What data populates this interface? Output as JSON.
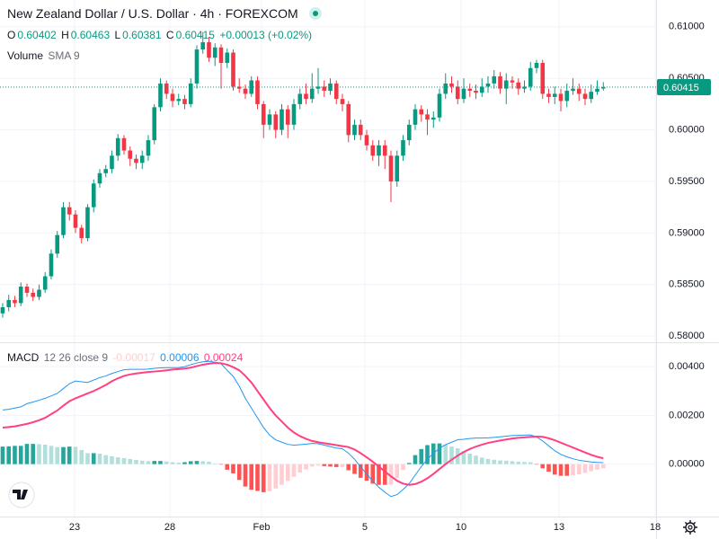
{
  "chart_data": [
    {
      "type": "candlestick",
      "title": "New Zealand Dollar / U.S. Dollar · 4h · FOREXCOM",
      "ohlc_labels": [
        "O",
        "H",
        "L",
        "C"
      ],
      "change_label": "+0.00013 (+0.02%)",
      "volume_label": "Volume",
      "volume_setting": "SMA 9",
      "up_color": "#089981",
      "down_color": "#f23645",
      "open": [
        0.5822,
        0.5828,
        0.5835,
        0.5832,
        0.5848,
        0.5842,
        0.5838,
        0.5845,
        0.5858,
        0.588,
        0.5898,
        0.5925,
        0.5918,
        0.5905,
        0.5895,
        0.5925,
        0.5948,
        0.5958,
        0.5962,
        0.5975,
        0.5992,
        0.598,
        0.5972,
        0.5968,
        0.5975,
        0.599,
        0.6022,
        0.6045,
        0.6035,
        0.6028,
        0.603,
        0.6025,
        0.6045,
        0.6078,
        0.6085,
        0.607,
        0.608,
        0.6065,
        0.6075,
        0.6042,
        0.604,
        0.6035,
        0.6048,
        0.6025,
        0.6005,
        0.6015,
        0.6,
        0.602,
        0.6005,
        0.6025,
        0.6035,
        0.603,
        0.604,
        0.6042,
        0.6038,
        0.6045,
        0.603,
        0.6025,
        0.5995,
        0.6005,
        0.5995,
        0.5985,
        0.5975,
        0.5985,
        0.5975,
        0.595,
        0.5975,
        0.599,
        0.6005,
        0.602,
        0.6015,
        0.601,
        0.6012,
        0.6035,
        0.6045,
        0.6042,
        0.603,
        0.604,
        0.6038,
        0.6036,
        0.6042,
        0.6045,
        0.6052,
        0.604,
        0.6048,
        0.6046,
        0.604,
        0.6042,
        0.606,
        0.6065,
        0.6035,
        0.6032,
        0.6035,
        0.6028,
        0.6038,
        0.604,
        0.6035,
        0.603,
        0.6037,
        0.60402
      ],
      "high": [
        0.5832,
        0.584,
        0.5839,
        0.5852,
        0.5851,
        0.5846,
        0.585,
        0.5862,
        0.5884,
        0.5902,
        0.593,
        0.593,
        0.5922,
        0.5908,
        0.5928,
        0.5952,
        0.5962,
        0.5966,
        0.598,
        0.5996,
        0.5995,
        0.5984,
        0.5976,
        0.598,
        0.5995,
        0.6025,
        0.605,
        0.6048,
        0.604,
        0.6035,
        0.6034,
        0.605,
        0.6082,
        0.6095,
        0.609,
        0.6084,
        0.6083,
        0.6079,
        0.6078,
        0.605,
        0.6044,
        0.6052,
        0.6052,
        0.6028,
        0.602,
        0.6018,
        0.6025,
        0.6024,
        0.603,
        0.604,
        0.6045,
        0.6055,
        0.606,
        0.6048,
        0.605,
        0.6048,
        0.6035,
        0.6028,
        0.601,
        0.601,
        0.6,
        0.599,
        0.599,
        0.599,
        0.598,
        0.598,
        0.5995,
        0.601,
        0.6025,
        0.6024,
        0.602,
        0.6018,
        0.604,
        0.6055,
        0.6052,
        0.6048,
        0.605,
        0.6045,
        0.6044,
        0.605,
        0.6052,
        0.6058,
        0.6056,
        0.6055,
        0.6052,
        0.605,
        0.6048,
        0.6066,
        0.6068,
        0.6068,
        0.604,
        0.6042,
        0.604,
        0.6045,
        0.605,
        0.6045,
        0.604,
        0.6044,
        0.6048,
        0.60463
      ],
      "low": [
        0.5818,
        0.5824,
        0.5828,
        0.5829,
        0.5838,
        0.5834,
        0.5835,
        0.5842,
        0.5855,
        0.5876,
        0.5895,
        0.5912,
        0.59,
        0.589,
        0.5892,
        0.592,
        0.5944,
        0.5954,
        0.5958,
        0.597,
        0.5976,
        0.5965,
        0.5962,
        0.5962,
        0.597,
        0.5986,
        0.6018,
        0.603,
        0.6022,
        0.6024,
        0.602,
        0.6022,
        0.604,
        0.6074,
        0.6066,
        0.6062,
        0.604,
        0.606,
        0.6038,
        0.6036,
        0.603,
        0.6032,
        0.602,
        0.5992,
        0.6,
        0.5992,
        0.5995,
        0.5992,
        0.6,
        0.602,
        0.6025,
        0.6026,
        0.6035,
        0.6032,
        0.6034,
        0.6025,
        0.6018,
        0.5988,
        0.599,
        0.599,
        0.598,
        0.597,
        0.5965,
        0.5962,
        0.593,
        0.5945,
        0.597,
        0.5985,
        0.6,
        0.6008,
        0.5995,
        0.6002,
        0.6008,
        0.603,
        0.6036,
        0.6025,
        0.6026,
        0.6032,
        0.603,
        0.6032,
        0.6036,
        0.604,
        0.6035,
        0.6025,
        0.604,
        0.6034,
        0.6036,
        0.6038,
        0.6055,
        0.603,
        0.6026,
        0.6025,
        0.6018,
        0.6022,
        0.6034,
        0.6028,
        0.6024,
        0.6026,
        0.6034,
        0.60381
      ],
      "close": [
        0.5828,
        0.5835,
        0.5832,
        0.5848,
        0.5842,
        0.5838,
        0.5845,
        0.5858,
        0.588,
        0.5898,
        0.5925,
        0.5918,
        0.5905,
        0.5895,
        0.5925,
        0.5948,
        0.5958,
        0.5962,
        0.5975,
        0.5992,
        0.598,
        0.5972,
        0.5968,
        0.5975,
        0.599,
        0.6022,
        0.6045,
        0.6035,
        0.6028,
        0.603,
        0.6025,
        0.6045,
        0.6078,
        0.6085,
        0.607,
        0.608,
        0.6065,
        0.6075,
        0.6042,
        0.604,
        0.6035,
        0.6048,
        0.6025,
        0.6005,
        0.6015,
        0.6,
        0.602,
        0.6005,
        0.6025,
        0.6035,
        0.603,
        0.604,
        0.6042,
        0.6038,
        0.6045,
        0.603,
        0.6025,
        0.5995,
        0.6005,
        0.5995,
        0.5985,
        0.5975,
        0.5985,
        0.5975,
        0.595,
        0.5975,
        0.599,
        0.6005,
        0.602,
        0.6015,
        0.601,
        0.6012,
        0.6035,
        0.6045,
        0.6042,
        0.603,
        0.604,
        0.6038,
        0.6036,
        0.6042,
        0.6045,
        0.6052,
        0.604,
        0.6048,
        0.6046,
        0.604,
        0.6042,
        0.606,
        0.6065,
        0.6035,
        0.6032,
        0.6035,
        0.6028,
        0.6038,
        0.604,
        0.6035,
        0.603,
        0.6037,
        0.604,
        0.60415
      ],
      "xlim": [
        -0.44,
        107.7
      ],
      "xticks": [
        {
          "value": 11.85,
          "label": "23"
        },
        {
          "value": 27.56,
          "label": "28"
        },
        {
          "value": 42.67,
          "label": "Feb"
        },
        {
          "value": 59.7,
          "label": "5"
        },
        {
          "value": 75.56,
          "label": "10"
        },
        {
          "value": 91.7,
          "label": "13"
        },
        {
          "value": 107.56,
          "label": "18"
        }
      ],
      "ylim": [
        0.5794,
        0.6126
      ],
      "yticks": [
        {
          "value": 0.58,
          "label": "0.58000"
        },
        {
          "value": 0.585,
          "label": "0.58500"
        },
        {
          "value": 0.59,
          "label": "0.59000"
        },
        {
          "value": 0.595,
          "label": "0.59500"
        },
        {
          "value": 0.6,
          "label": "0.60000"
        },
        {
          "value": 0.605,
          "label": "0.60500"
        },
        {
          "value": 0.61,
          "label": "0.61000"
        }
      ],
      "grid": true
    },
    {
      "type": "macd",
      "title": "MACD",
      "params": "12 26 close 9",
      "macd_color": "#2196f3",
      "signal_color": "#ff4081",
      "hist_colors": {
        "rising_positive": "#26a69a",
        "falling_positive": "#b2dfdb",
        "falling_negative": "#ff5252",
        "rising_negative": "#ffcdd2"
      },
      "hist": [
        0.00072,
        0.00073,
        0.00075,
        0.00075,
        0.00083,
        0.00083,
        0.00082,
        0.0008,
        0.00075,
        0.0007,
        0.0007,
        0.00072,
        0.00071,
        0.00058,
        0.00045,
        0.00045,
        0.00043,
        0.00037,
        0.00032,
        0.00028,
        0.00025,
        0.00021,
        0.00017,
        0.00014,
        0.00012,
        0.00013,
        0.00013,
        0.00011,
        8e-05,
        6e-05,
        8e-05,
        0.00012,
        0.00013,
        0.00012,
        0.0001,
        3e-05,
        -2e-05,
        -0.00023,
        -0.00038,
        -0.00065,
        -0.00092,
        -0.00105,
        -0.0011,
        -0.00115,
        -0.00111,
        -0.001,
        -0.00085,
        -0.00069,
        -0.00052,
        -0.00035,
        -0.00022,
        -0.0001,
        -6e-05,
        -8e-05,
        -0.0001,
        -0.00012,
        -0.00011,
        -0.00025,
        -0.0004,
        -0.00056,
        -0.00068,
        -0.0008,
        -0.00085,
        -0.00085,
        -0.00083,
        -0.00057,
        -0.00024,
        5e-05,
        0.00037,
        0.00062,
        0.00078,
        0.00085,
        0.00085,
        0.0008,
        0.00072,
        0.00065,
        0.00052,
        0.00043,
        0.00035,
        0.00027,
        0.00021,
        0.00018,
        0.00015,
        0.00014,
        0.00012,
        0.0001,
        9e-05,
        8e-05,
        -1e-05,
        -0.00017,
        -0.00031,
        -0.00043,
        -0.00048,
        -0.00048,
        -0.00046,
        -0.00042,
        -0.00036,
        -0.00029,
        -0.00023,
        -0.00017
      ],
      "macd": [
        0.00222,
        0.00225,
        0.0023,
        0.00235,
        0.00248,
        0.00255,
        0.00262,
        0.0027,
        0.0028,
        0.0029,
        0.0031,
        0.0033,
        0.00341,
        0.00338,
        0.00335,
        0.00345,
        0.00355,
        0.00362,
        0.00372,
        0.0038,
        0.00387,
        0.00389,
        0.00389,
        0.00389,
        0.0039,
        0.00393,
        0.00395,
        0.00396,
        0.00396,
        0.00396,
        0.004,
        0.00408,
        0.00415,
        0.0042,
        0.00422,
        0.00418,
        0.00412,
        0.00385,
        0.0036,
        0.0032,
        0.0027,
        0.0023,
        0.0019,
        0.0015,
        0.00119,
        0.001,
        0.0009,
        0.00081,
        0.00078,
        0.0008,
        0.00082,
        0.00085,
        0.00084,
        0.00078,
        0.00072,
        0.00066,
        0.00063,
        0.00045,
        0.0002,
        -0.00011,
        -0.0004,
        -0.0007,
        -0.00095,
        -0.00115,
        -0.00133,
        -0.00125,
        -0.00104,
        -0.0008,
        -0.00045,
        -0.0001,
        0.0002,
        0.00045,
        0.00065,
        0.0008,
        0.0009,
        0.001,
        0.00102,
        0.00105,
        0.00107,
        0.00107,
        0.00108,
        0.0011,
        0.00112,
        0.00115,
        0.00117,
        0.00118,
        0.00119,
        0.0012,
        0.00112,
        0.00095,
        0.00075,
        0.00055,
        0.0004,
        0.0003,
        0.00022,
        0.00016,
        0.00012,
        9e-05,
        7e-05,
        6e-05
      ],
      "signal": [
        0.0015,
        0.00152,
        0.00155,
        0.0016,
        0.00165,
        0.00172,
        0.0018,
        0.0019,
        0.00205,
        0.0022,
        0.0024,
        0.00258,
        0.0027,
        0.0028,
        0.0029,
        0.003,
        0.00312,
        0.00325,
        0.0034,
        0.00352,
        0.00362,
        0.00368,
        0.00372,
        0.00375,
        0.00378,
        0.0038,
        0.00382,
        0.00385,
        0.00388,
        0.0039,
        0.00392,
        0.00396,
        0.00402,
        0.00408,
        0.00412,
        0.00415,
        0.00414,
        0.00408,
        0.00398,
        0.00385,
        0.00362,
        0.00335,
        0.003,
        0.00265,
        0.0023,
        0.002,
        0.00175,
        0.0015,
        0.0013,
        0.00115,
        0.00104,
        0.00095,
        0.0009,
        0.00086,
        0.00082,
        0.00078,
        0.00074,
        0.0007,
        0.0006,
        0.00045,
        0.00028,
        0.0001,
        -0.0001,
        -0.0003,
        -0.0005,
        -0.00068,
        -0.0008,
        -0.00085,
        -0.00082,
        -0.00072,
        -0.00058,
        -0.0004,
        -0.0002,
        0,
        0.00018,
        0.00035,
        0.0005,
        0.00062,
        0.00072,
        0.0008,
        0.00087,
        0.00092,
        0.00097,
        0.00101,
        0.00105,
        0.00108,
        0.0011,
        0.00112,
        0.00113,
        0.00112,
        0.00106,
        0.00098,
        0.00088,
        0.00078,
        0.00068,
        0.00058,
        0.00048,
        0.00038,
        0.0003,
        0.00024
      ],
      "ylim": [
        -0.00215,
        0.005
      ],
      "yticks": [
        {
          "value": 0,
          "label": "0.00000"
        },
        {
          "value": 0.002,
          "label": "0.00200"
        },
        {
          "value": 0.004,
          "label": "0.00400"
        }
      ],
      "grid": true
    }
  ]
}
